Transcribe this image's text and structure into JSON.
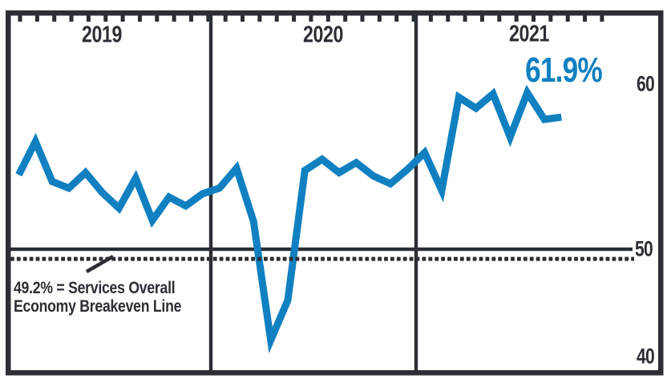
{
  "chart_data": {
    "type": "line",
    "x_unit": "month",
    "years": [
      {
        "label": "2019",
        "values": [
          56.7,
          59.7,
          56.1,
          55.5,
          56.9,
          55.1,
          53.7,
          56.4,
          52.6,
          54.7,
          53.9,
          55.0
        ]
      },
      {
        "label": "2020",
        "values": [
          55.5,
          57.3,
          52.5,
          41.8,
          45.4,
          57.1,
          58.1,
          56.9,
          57.8,
          56.6,
          55.9,
          57.2
        ]
      },
      {
        "label": "2021",
        "values": [
          58.7,
          55.3,
          63.7,
          62.7,
          64.0,
          60.1,
          64.1,
          61.7,
          61.9
        ]
      }
    ],
    "latest_value_label": "61.9%",
    "y_ticks": [
      40,
      50,
      60
    ],
    "y_tick_labels": [
      "60",
      "50",
      "40"
    ],
    "ylim": [
      39,
      71
    ],
    "reference_line_value": 50,
    "breakeven_value": 49.2,
    "annotation": {
      "line1": "49.2% = Services Overall",
      "line2": "Economy Breakeven Line"
    },
    "legend_position": "none",
    "grid": "year-divider verticals plus solid 50 reference line and dashed 49.2 breakeven line"
  },
  "colors": {
    "line": "#1080c1",
    "latest_value": "#1080c1",
    "dark": "#2b2e34",
    "background": "#ffffff"
  }
}
